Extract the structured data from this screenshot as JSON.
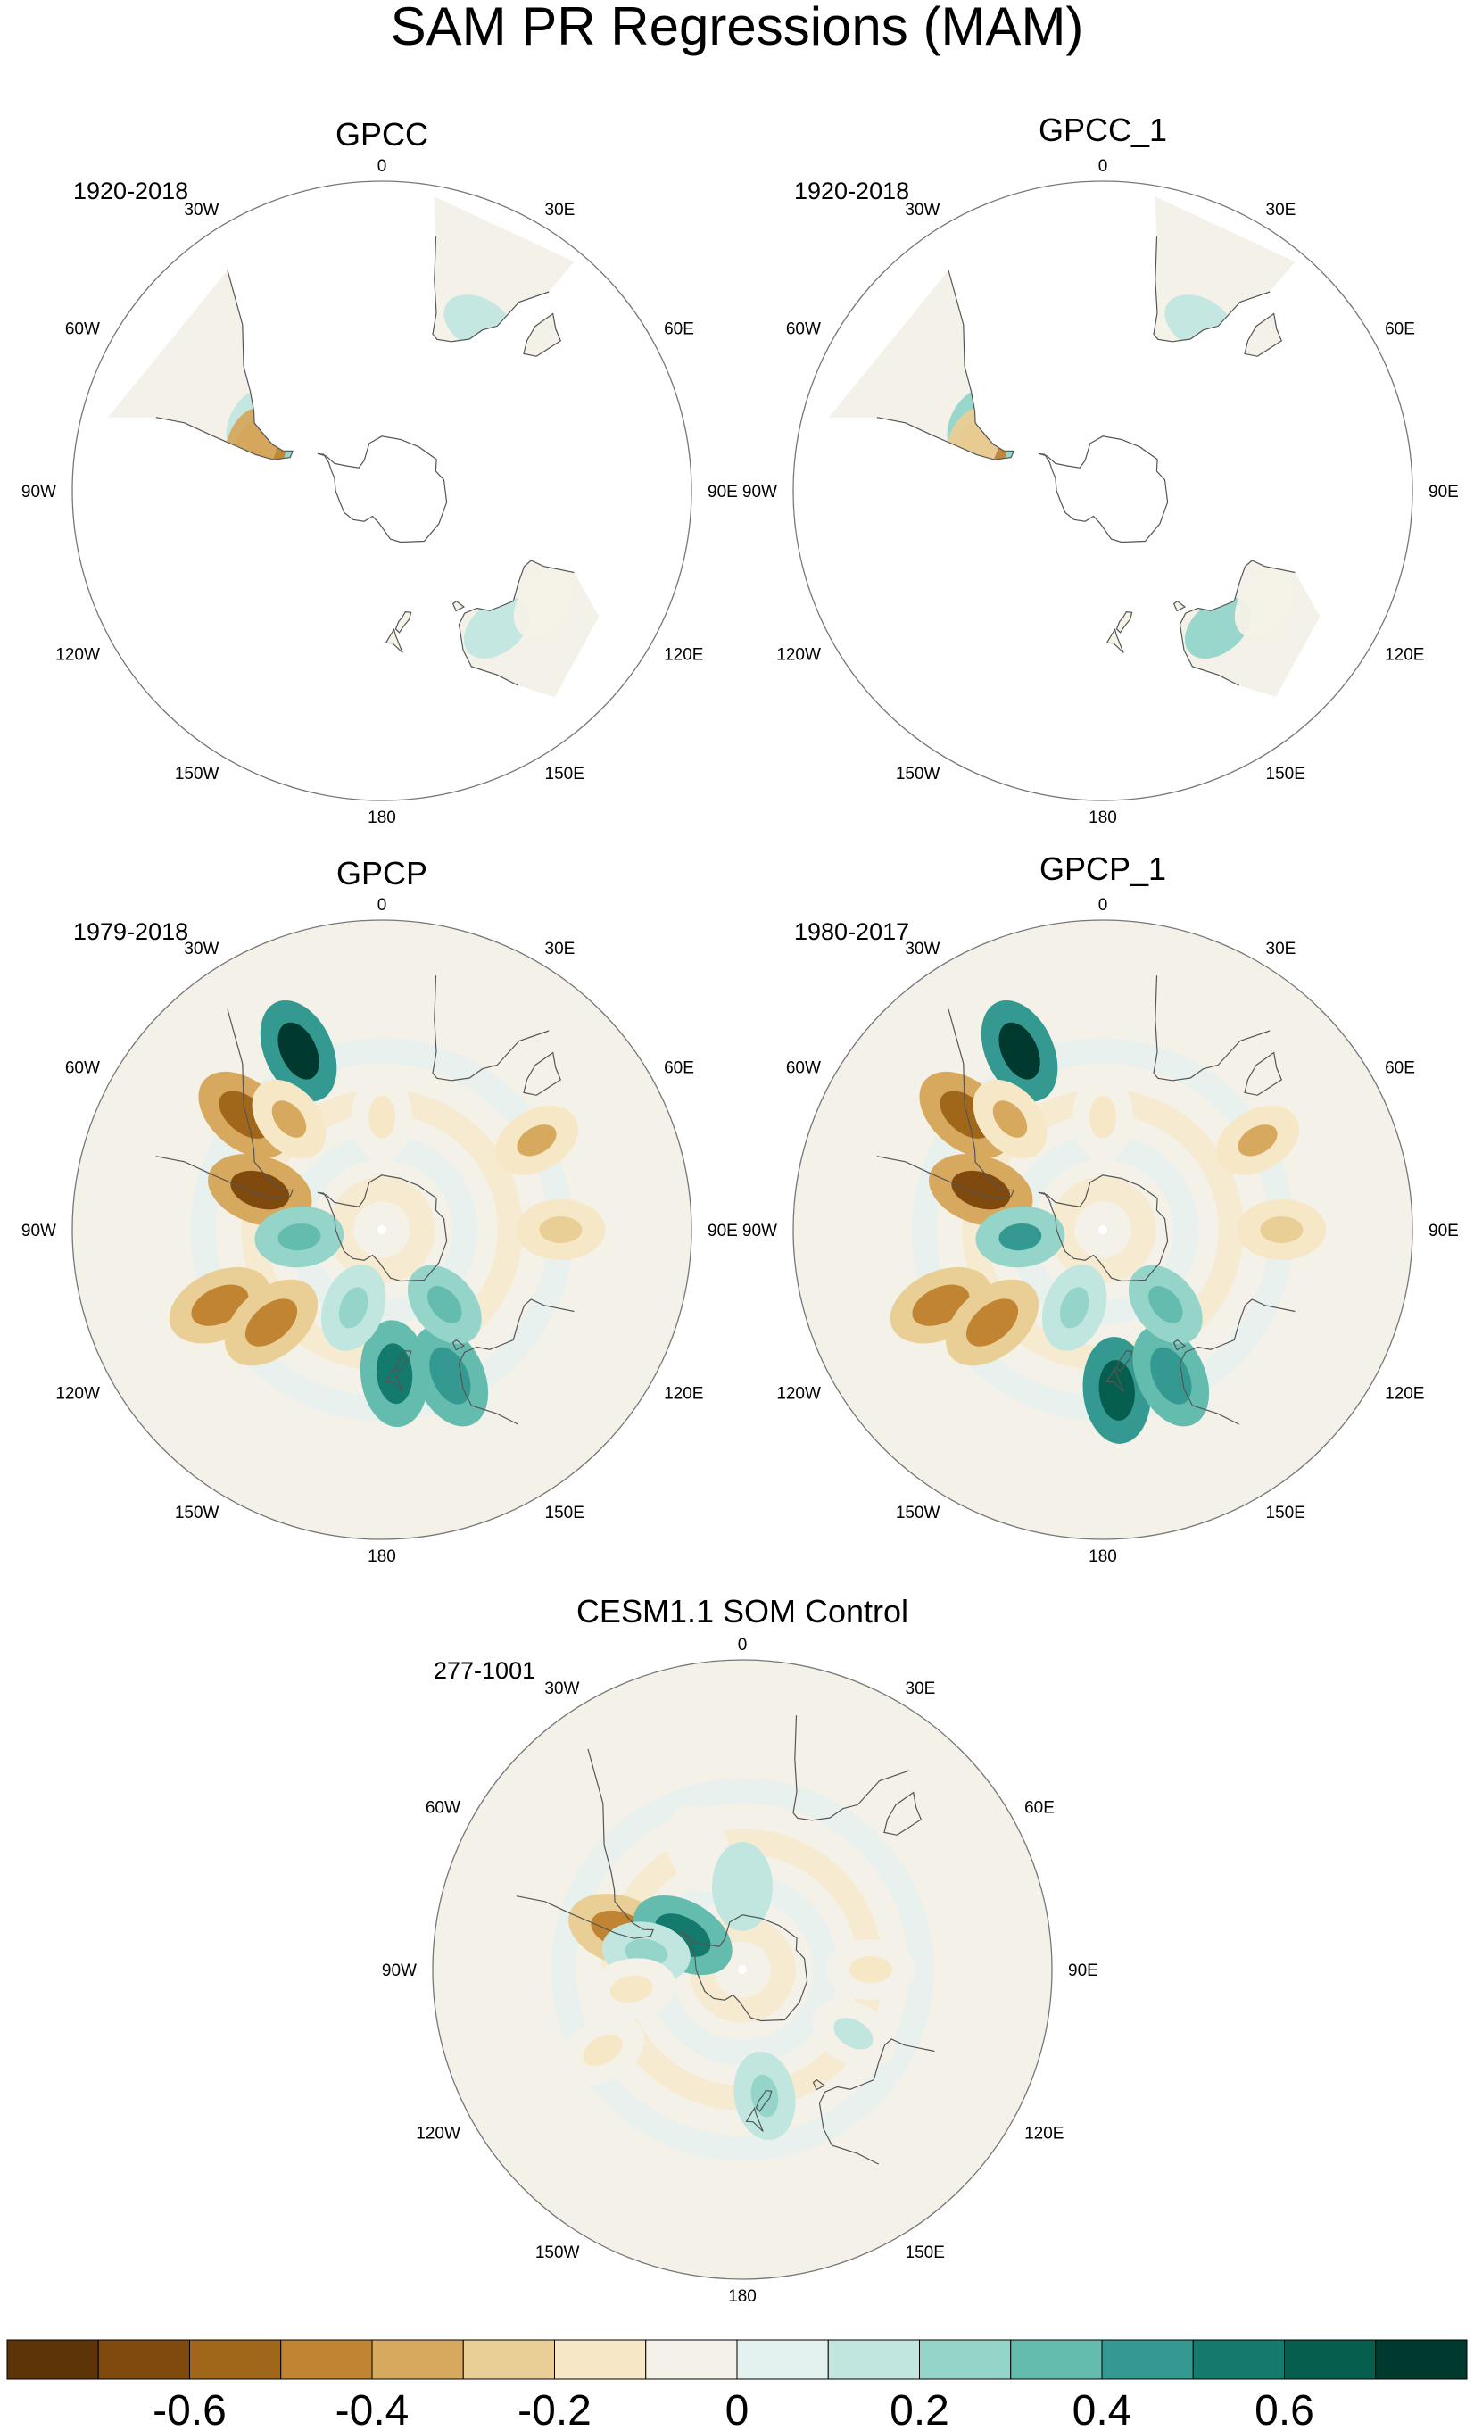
{
  "figure": {
    "title": "SAM PR Regressions (MAM)"
  },
  "panels": [
    {
      "id": "gpcc",
      "title": "GPCC",
      "period": "1920-2018",
      "coverage": "land",
      "patches": [
        {
          "lon": -58,
          "lat": -52,
          "v": 0.15
        },
        {
          "lon": -62,
          "lat": -40,
          "v": 0.1
        },
        {
          "lon": -72,
          "lat": -45,
          "v": -0.45
        },
        {
          "lon": -70,
          "lat": -42,
          "v": -0.3
        },
        {
          "lon": 22,
          "lat": -30,
          "v": -0.08
        },
        {
          "lon": 30,
          "lat": -26,
          "v": 0.08
        },
        {
          "lon": 140,
          "lat": -30,
          "v": 0.1
        },
        {
          "lon": 125,
          "lat": -25,
          "v": -0.06
        },
        {
          "lon": 170,
          "lat": -42,
          "v": -0.08
        }
      ]
    },
    {
      "id": "gpcc_1",
      "title": "GPCC_1",
      "period": "1920-2018",
      "coverage": "land",
      "patches": [
        {
          "lon": -58,
          "lat": -52,
          "v": 0.15
        },
        {
          "lon": -62,
          "lat": -40,
          "v": 0.12
        },
        {
          "lon": -72,
          "lat": -45,
          "v": -0.4
        },
        {
          "lon": -70,
          "lat": -42,
          "v": -0.28
        },
        {
          "lon": 22,
          "lat": -30,
          "v": -0.06
        },
        {
          "lon": 30,
          "lat": -26,
          "v": 0.08
        },
        {
          "lon": 140,
          "lat": -30,
          "v": 0.12
        },
        {
          "lon": 125,
          "lat": -25,
          "v": -0.06
        },
        {
          "lon": 170,
          "lat": -42,
          "v": -0.06
        }
      ]
    },
    {
      "id": "gpcp",
      "title": "GPCP",
      "period": "1979-2018",
      "coverage": "full",
      "patches": [
        {
          "lon": -25,
          "lat": -25,
          "v": 0.65
        },
        {
          "lon": -50,
          "lat": -30,
          "v": -0.55
        },
        {
          "lon": -72,
          "lat": -45,
          "v": -0.6
        },
        {
          "lon": -40,
          "lat": -40,
          "v": -0.3
        },
        {
          "lon": 60,
          "lat": -30,
          "v": -0.35
        },
        {
          "lon": -95,
          "lat": -60,
          "v": 0.3
        },
        {
          "lon": -115,
          "lat": -30,
          "v": -0.4
        },
        {
          "lon": -130,
          "lat": -40,
          "v": -0.4
        },
        {
          "lon": 175,
          "lat": -40,
          "v": 0.45
        },
        {
          "lon": 155,
          "lat": -35,
          "v": 0.4
        },
        {
          "lon": 140,
          "lat": -55,
          "v": 0.3
        },
        {
          "lon": 90,
          "lat": -30,
          "v": -0.2
        },
        {
          "lon": 0,
          "lat": -50,
          "v": -0.15
        },
        {
          "lon": -160,
          "lat": -60,
          "v": 0.15
        }
      ]
    },
    {
      "id": "gpcp_1",
      "title": "GPCP_1",
      "period": "1980-2017",
      "coverage": "full",
      "patches": [
        {
          "lon": -25,
          "lat": -25,
          "v": 0.65
        },
        {
          "lon": -50,
          "lat": -30,
          "v": -0.58
        },
        {
          "lon": -72,
          "lat": -45,
          "v": -0.6
        },
        {
          "lon": -40,
          "lat": -40,
          "v": -0.3
        },
        {
          "lon": 60,
          "lat": -30,
          "v": -0.35
        },
        {
          "lon": -95,
          "lat": -60,
          "v": 0.35
        },
        {
          "lon": -115,
          "lat": -30,
          "v": -0.4
        },
        {
          "lon": -130,
          "lat": -40,
          "v": -0.4
        },
        {
          "lon": 175,
          "lat": -35,
          "v": 0.55
        },
        {
          "lon": 155,
          "lat": -35,
          "v": 0.4
        },
        {
          "lon": 140,
          "lat": -55,
          "v": 0.3
        },
        {
          "lon": 90,
          "lat": -30,
          "v": -0.2
        },
        {
          "lon": 0,
          "lat": -50,
          "v": -0.15
        },
        {
          "lon": -160,
          "lat": -60,
          "v": 0.15
        }
      ]
    },
    {
      "id": "cesm",
      "title": "CESM1.1 SOM Control",
      "period": "277-1001",
      "coverage": "full",
      "patches": [
        {
          "lon": -72,
          "lat": -45,
          "v": -0.45
        },
        {
          "lon": -60,
          "lat": -65,
          "v": 0.45
        },
        {
          "lon": -80,
          "lat": -55,
          "v": 0.15
        },
        {
          "lon": -20,
          "lat": -45,
          "v": -0.08
        },
        {
          "lon": 90,
          "lat": -45,
          "v": -0.1
        },
        {
          "lon": 120,
          "lat": -45,
          "v": 0.08
        },
        {
          "lon": -120,
          "lat": -35,
          "v": -0.1
        },
        {
          "lon": 170,
          "lat": -45,
          "v": 0.15
        },
        {
          "lon": 0,
          "lat": -60,
          "v": 0.1
        },
        {
          "lon": -100,
          "lat": -50,
          "v": -0.1
        }
      ]
    }
  ],
  "map_labels": {
    "lon_labels": [
      "0",
      "30E",
      "60E",
      "90E",
      "120E",
      "150E",
      "180",
      "150W",
      "120W",
      "90W",
      "60W",
      "30W"
    ]
  },
  "colorbar": {
    "colors": [
      "#5c3408",
      "#804a0e",
      "#a0661a",
      "#c08432",
      "#d6a95e",
      "#e9cf95",
      "#f6e8c6",
      "#f4f1e8",
      "#e3f1ef",
      "#c1e6e0",
      "#94d4c9",
      "#64bcae",
      "#349990",
      "#147a6e",
      "#065e4f",
      "#00392e"
    ],
    "tick_labels": [
      "-0.6",
      "-0.4",
      "-0.2",
      "0",
      "0.2",
      "0.4",
      "0.6"
    ],
    "levels": [
      -0.7,
      -0.6,
      -0.5,
      -0.4,
      -0.3,
      -0.2,
      -0.1,
      -0.05,
      0.05,
      0.1,
      0.2,
      0.3,
      0.4,
      0.5,
      0.6,
      0.7
    ]
  }
}
